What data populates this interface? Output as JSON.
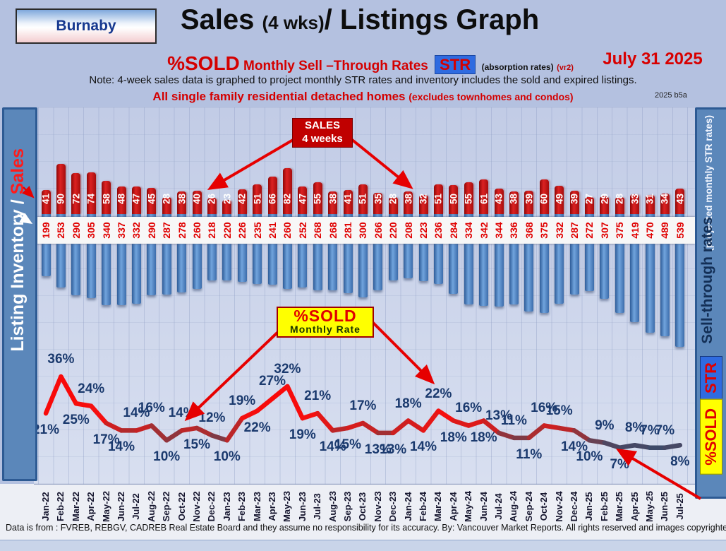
{
  "header": {
    "region_button": "Burnaby",
    "title_main": "Sales ",
    "title_wks": "(4 wks)",
    "title_rest": "/ Listings Graph",
    "pct_sold": "%SOLD",
    "rates_text": " Monthly Sell –Through Rates ",
    "str_badge": "STR",
    "absorption_note": "(absorption rates)",
    "version_tag": "(vr2)",
    "report_date": "July  31 2025",
    "note_line": "Note: 4-week sales data is graphed to project monthly STR rates and inventory includes the sold and expired listings.",
    "subject_line": "All single family residential detached homes ",
    "subject_paren": "(excludes townhomes and condos)",
    "file_code": "2025 b5a"
  },
  "left_axis": {
    "inventory_label": "Listing Inventory / ",
    "sales_label": "Sales"
  },
  "right_axis": {
    "projected_label": "(projected monthly STR rates)",
    "rates_label": "Sell-through rates",
    "str_label": "STR",
    "sold_label": "%SOLD"
  },
  "annotations": {
    "sales_box_line1": "SALES",
    "sales_box_line2": "4  weeks",
    "sold_box_line1": "%SOLD",
    "sold_box_line2": "Monthly Rate"
  },
  "footer_text": "Data is from : FVREB, REBGV, CADREB Real Estate Board and they assume no responsibility for its accuracy. By: Vancouver Market Reports. All rights reserved and  images copyrighted",
  "colors": {
    "sales_bar": "#c00000",
    "listing_bar": "#4f81bd",
    "line_high": "#ff0000",
    "line_low": "#3e4a69",
    "pct_label": "#1b3a6e",
    "band_number": "#e00000",
    "accent_yellow": "#ffff00",
    "str_blue": "#2f6be0"
  },
  "chart_data": {
    "type": "bar+line",
    "title": "Sales (4 wks) / Listings Graph — Burnaby — %SOLD Monthly Sell-Through Rates (STR)",
    "categories": [
      "Jan-22",
      "Feb-22",
      "Mar-22",
      "Apr-22",
      "May-22",
      "Jun-22",
      "Jul-22",
      "Aug-22",
      "Sep-22",
      "Oct-22",
      "Nov-22",
      "Dec-22",
      "Jan-23",
      "Feb-23",
      "Mar-23",
      "Apr-23",
      "May-23",
      "Jun-23",
      "Jul-23",
      "Aug-23",
      "Sep-23",
      "Oct-23",
      "Nov-23",
      "Dec-23",
      "Jan-24",
      "Feb-24",
      "Mar-24",
      "Apr-24",
      "May-24",
      "Jun-24",
      "Jul-24",
      "Aug-24",
      "Sep-24",
      "Oct-24",
      "Nov-24",
      "Dec-24",
      "Jan-25",
      "Feb-25",
      "Mar-25",
      "Apr-25",
      "May-25",
      "Jun-25",
      "Jul-25"
    ],
    "series": [
      {
        "name": "Sales (4 weeks)",
        "type": "bar",
        "color": "#c00000",
        "values": [
          41,
          90,
          72,
          74,
          58,
          48,
          47,
          45,
          28,
          38,
          40,
          26,
          23,
          42,
          51,
          66,
          82,
          47,
          55,
          38,
          41,
          51,
          35,
          28,
          38,
          32,
          51,
          50,
          55,
          61,
          43,
          38,
          39,
          60,
          49,
          39,
          27,
          29,
          28,
          33,
          31,
          34,
          43
        ]
      },
      {
        "name": "Listing Inventory (includes sold and expired)",
        "type": "bar",
        "color": "#4f81bd",
        "values": [
          199,
          253,
          290,
          305,
          340,
          337,
          332,
          290,
          287,
          278,
          260,
          218,
          220,
          226,
          235,
          241,
          260,
          252,
          268,
          268,
          281,
          300,
          266,
          220,
          208,
          223,
          236,
          284,
          334,
          342,
          344,
          336,
          368,
          375,
          332,
          287,
          272,
          307,
          375,
          419,
          470,
          489,
          539
        ]
      },
      {
        "name": "%SOLD monthly sell-through rate (STR)",
        "type": "line",
        "unit": "%",
        "color": "#ff0000",
        "values": [
          21,
          36,
          25,
          24,
          17,
          14,
          14,
          16,
          10,
          14,
          15,
          12,
          10,
          19,
          22,
          27,
          32,
          19,
          21,
          14,
          15,
          17,
          13,
          13,
          18,
          14,
          22,
          18,
          16,
          18,
          13,
          11,
          11,
          16,
          15,
          14,
          10,
          9,
          7,
          8,
          7,
          7,
          8
        ]
      }
    ],
    "pct_label_side": [
      "b",
      "a",
      "b",
      "a",
      "b",
      "b",
      "a",
      "a",
      "b",
      "a",
      "b",
      "a",
      "b",
      "a",
      "b",
      "a",
      "a",
      "b",
      "a",
      "b",
      "b",
      "a",
      "b",
      "b",
      "a",
      "b",
      "a",
      "b",
      "a",
      "b",
      "a",
      "a",
      "b",
      "a",
      "a",
      "b",
      "b",
      "a",
      "b",
      "a",
      "a",
      "a",
      "b"
    ],
    "x_axis_rotated": true,
    "legend": "none",
    "ylim_bars": [
      0,
      560
    ],
    "ylim_line_pct": [
      0,
      40
    ]
  }
}
